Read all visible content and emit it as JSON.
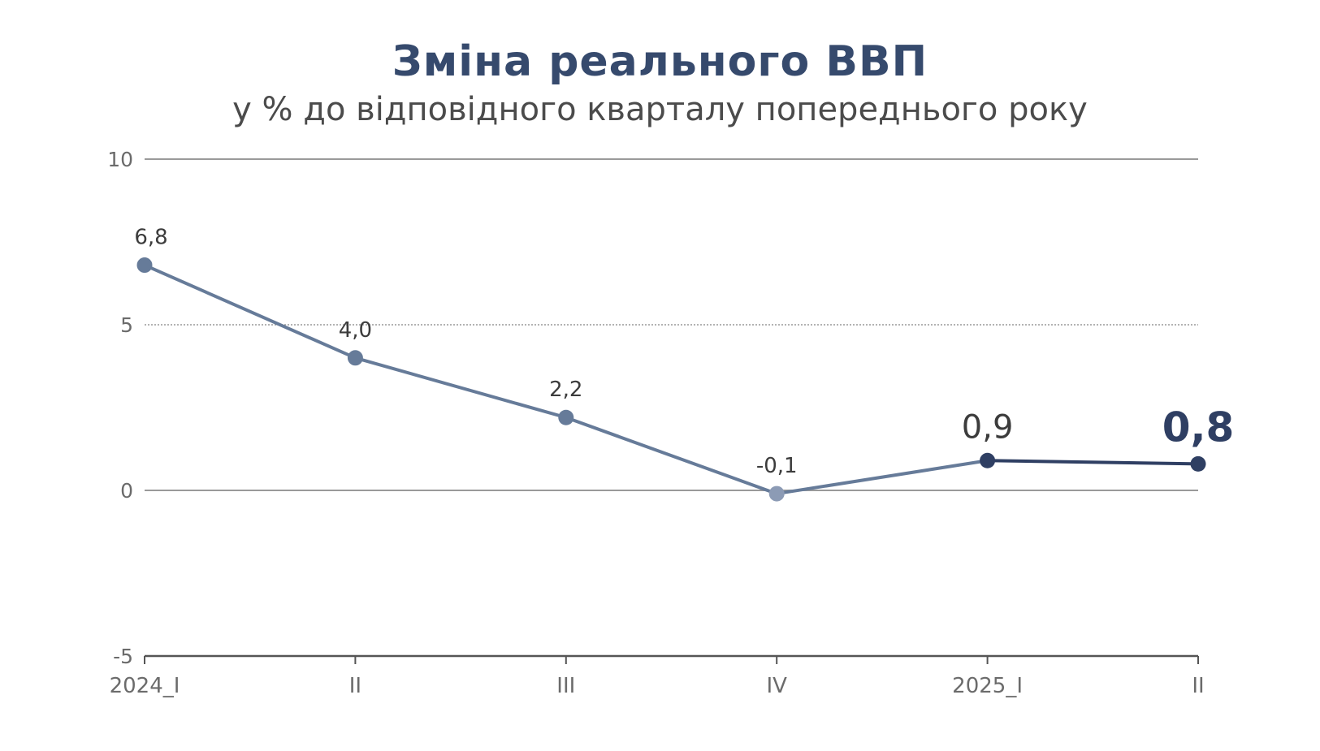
{
  "chart_data": {
    "type": "line",
    "title": "Зміна реального ВВП",
    "subtitle": "у % до відповідного кварталу попереднього року",
    "xlabel": "",
    "ylabel": "",
    "categories": [
      "2024_I",
      "II",
      "III",
      "IV",
      "2025_I",
      "II"
    ],
    "values": [
      6.8,
      4.0,
      2.2,
      -0.1,
      0.9,
      0.8
    ],
    "data_labels": [
      "6,8",
      "4,0",
      "2,2",
      "-0,1",
      "0,9",
      "0,8"
    ],
    "ylim": [
      -5,
      10
    ],
    "yticks": [
      10,
      5,
      0,
      -5
    ],
    "ytick_labels": [
      "10",
      "5",
      "0",
      "-5"
    ],
    "grid": true,
    "colors": {
      "line_2024": "#667b99",
      "line_2025": "#2f3f63",
      "point_2024": "#667b99",
      "point_2024_q4": "#8c9bb5",
      "point_2025": "#2f3f63",
      "gridline": "#9a9a9a",
      "title": "#364a6d"
    }
  }
}
